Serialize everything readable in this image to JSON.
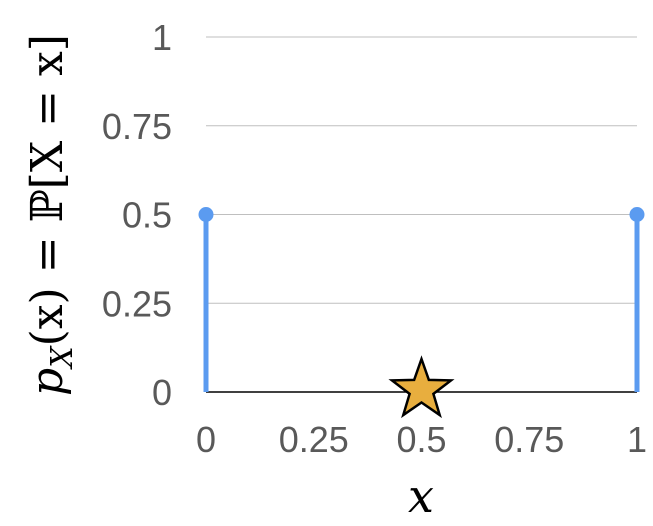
{
  "chart_data": {
    "type": "stem",
    "series": [
      {
        "x": [
          0,
          1
        ],
        "y": [
          0.5,
          0.5
        ],
        "color": "#5b9bf0"
      }
    ],
    "marker": {
      "shape": "star",
      "x": 0.5,
      "y": 0,
      "fill": "#e8ae3e",
      "stroke": "#000000"
    },
    "xlabel": "x",
    "ylabel": "p_X(x) = ℙ[X = x]",
    "ylabel_parts": {
      "p": "p",
      "sub": "X",
      "rest": "(x) = ℙ[X = x]"
    },
    "xlim": [
      0,
      1
    ],
    "ylim": [
      0,
      1
    ],
    "xticks": [
      0,
      0.25,
      0.5,
      0.75,
      1
    ],
    "xtick_labels": [
      "0",
      "0.25",
      "0.5",
      "0.75",
      "1"
    ],
    "yticks": [
      0,
      0.25,
      0.5,
      0.75,
      1
    ],
    "ytick_labels": [
      "0",
      "0.25",
      "0.5",
      "0.75",
      "1"
    ],
    "grid": "horizontal",
    "colors": {
      "stem": "#5b9bf0",
      "grid": "#bfbfbf",
      "baseline": "#000000",
      "tick_text": "#595959"
    }
  }
}
